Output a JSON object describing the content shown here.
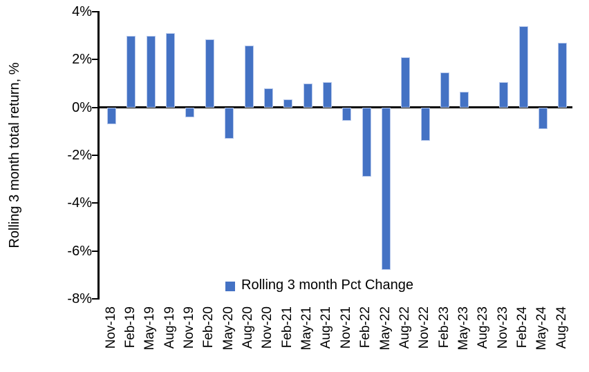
{
  "chart_data": {
    "type": "bar",
    "title": "",
    "ylabel": "Rolling 3 month total return, %",
    "xlabel": "",
    "legend": "Rolling 3 month Pct Change",
    "legend_position": "bottom-center",
    "grid": false,
    "categories": [
      "Nov-18",
      "Feb-19",
      "May-19",
      "Aug-19",
      "Nov-19",
      "Feb-20",
      "May-20",
      "Aug-20",
      "Nov-20",
      "Feb-21",
      "May-21",
      "Aug-21",
      "Nov-21",
      "Feb-22",
      "May-22",
      "Aug-22",
      "Nov-22",
      "Feb-23",
      "May-23",
      "Aug-23",
      "Nov-23",
      "Feb-24",
      "May-24",
      "Aug-24"
    ],
    "values": [
      -0.7,
      3.0,
      3.0,
      3.1,
      -0.4,
      2.85,
      -1.3,
      2.6,
      0.8,
      0.35,
      1.0,
      1.05,
      -0.55,
      -2.9,
      -6.8,
      2.1,
      -1.4,
      1.45,
      0.65,
      0.0,
      1.05,
      3.4,
      -0.9,
      2.7
    ],
    "ylim": [
      -8,
      4
    ],
    "yticks": [
      4,
      2,
      0,
      -2,
      -4,
      -6,
      -8
    ],
    "ytick_suffix": "%",
    "bar_color": "#4472C4",
    "bar_edge_color": "#b8c9ec",
    "axis_color": "#000000",
    "text_color": "#000000"
  }
}
